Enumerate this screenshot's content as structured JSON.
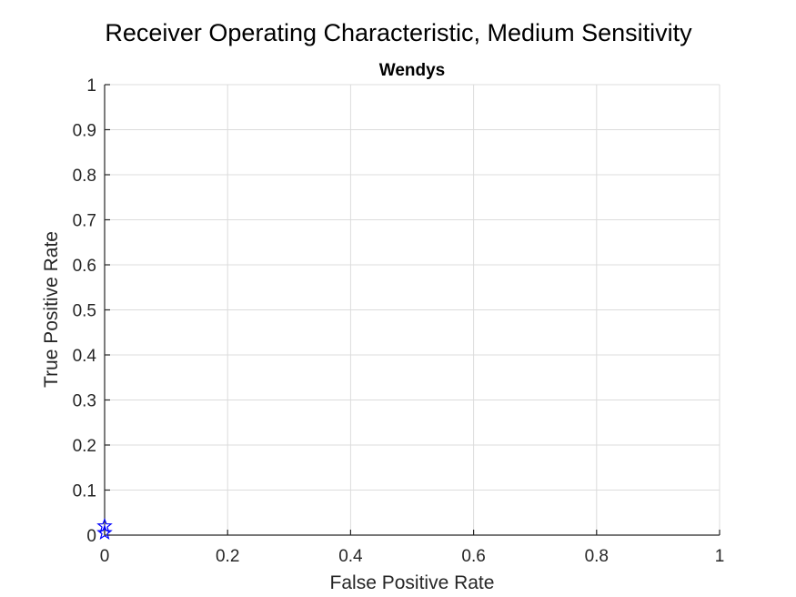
{
  "figure": {
    "suptitle": "Receiver Operating Characteristic, Medium Sensitivity"
  },
  "chart_data": {
    "type": "scatter",
    "title": "Wendys",
    "xlabel": "False Positive Rate",
    "ylabel": "True Positive Rate",
    "xlim": [
      0,
      1
    ],
    "ylim": [
      0,
      1
    ],
    "xticks": [
      0,
      0.2,
      0.4,
      0.6,
      0.8,
      1
    ],
    "xtick_labels": [
      "0",
      "0.2",
      "0.4",
      "0.6",
      "0.8",
      "1"
    ],
    "yticks": [
      0,
      0.1,
      0.2,
      0.3,
      0.4,
      0.5,
      0.6,
      0.7,
      0.8,
      0.9,
      1
    ],
    "ytick_labels": [
      "0",
      "0.1",
      "0.2",
      "0.3",
      "0.4",
      "0.5",
      "0.6",
      "0.7",
      "0.8",
      "0.9",
      "1"
    ],
    "grid": true,
    "series": [
      {
        "marker": "pentagram",
        "color": "#0000ff",
        "points": [
          {
            "x": 0,
            "y": 0.02
          },
          {
            "x": 0,
            "y": 0.005
          }
        ]
      }
    ]
  }
}
